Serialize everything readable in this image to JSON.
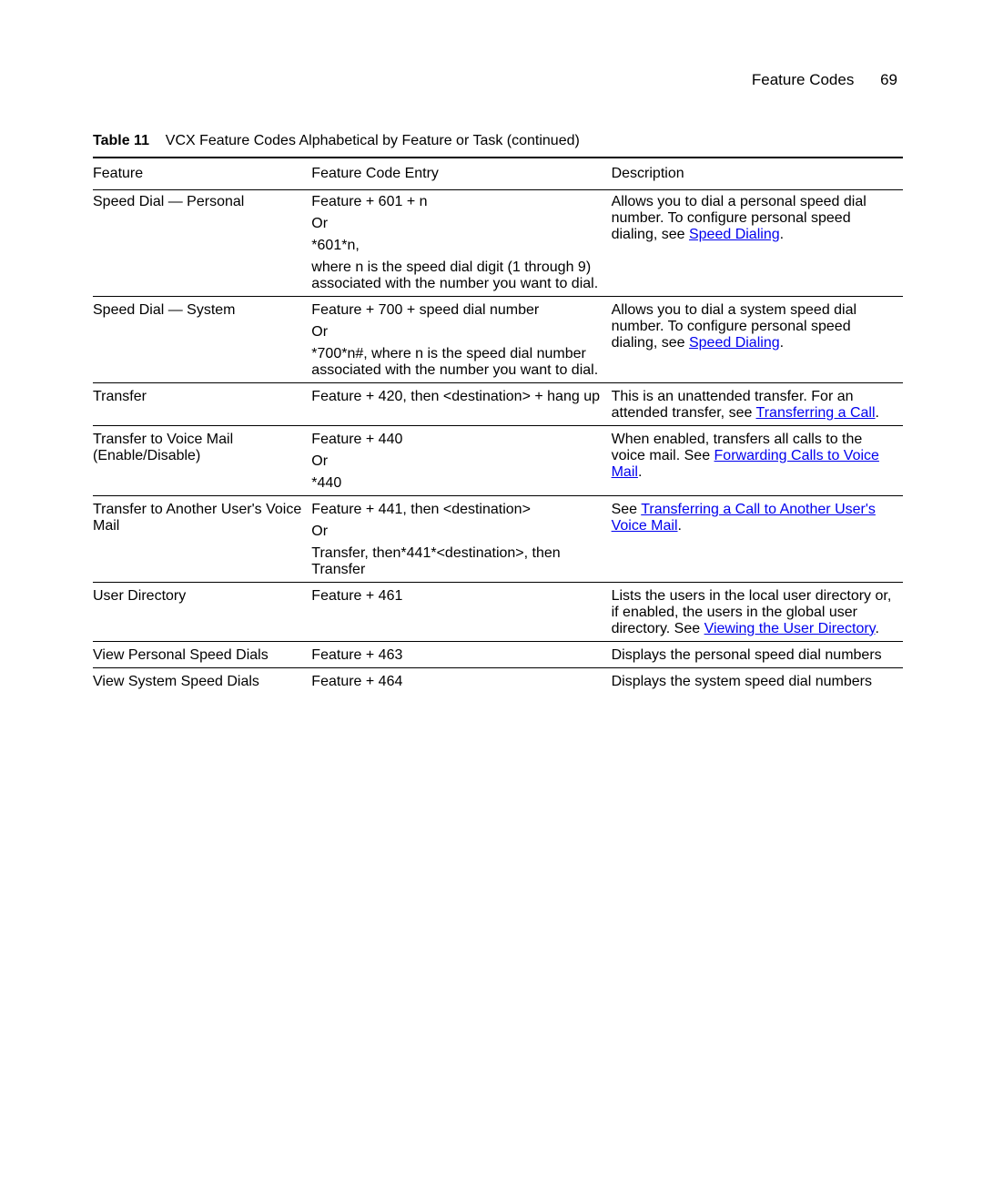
{
  "header": {
    "section": "Feature Codes",
    "pageNumber": "69"
  },
  "caption": {
    "prefix": "Table 11",
    "text": "VCX Feature Codes Alphabetical by Feature or Task  (continued)"
  },
  "columns": {
    "feature": "Feature",
    "entry": "Feature Code Entry",
    "description": "Description"
  },
  "rows": [
    {
      "feature": "Speed Dial — Personal",
      "entryLines": [
        "Feature + 601 + n",
        "Or",
        "*601*n,",
        "where n is the speed dial digit (1 through 9) associated with the number you want to dial."
      ],
      "desc": {
        "pre": "Allows you to dial a personal speed dial number. To configure personal speed dialing, see ",
        "link": "Speed Dialing",
        "post": "."
      }
    },
    {
      "feature": "Speed Dial — System",
      "entryLines": [
        "Feature + 700 + speed dial number",
        "Or",
        "*700*n#, where n is the speed dial number associated with the number you want to dial."
      ],
      "desc": {
        "pre": "Allows you to dial a system speed dial number. To configure personal speed dialing, see ",
        "link": "Speed Dialing",
        "post": "."
      }
    },
    {
      "feature": "Transfer",
      "entryLines": [
        "Feature + 420, then <destination> + hang up"
      ],
      "desc": {
        "pre": "This is an unattended transfer. For an attended transfer, see ",
        "link": "Transferring a Call",
        "post": "."
      }
    },
    {
      "feature": "Transfer to Voice Mail (Enable/Disable)",
      "entryLines": [
        "Feature + 440",
        "Or",
        "*440"
      ],
      "desc": {
        "pre": "When enabled, transfers all calls to the voice mail. See ",
        "link": "Forwarding Calls to Voice Mail",
        "post": "."
      }
    },
    {
      "feature": "Transfer to Another User's Voice Mail",
      "entryLines": [
        "Feature + 441, then <destination>",
        "Or",
        "Transfer, then*441*<destination>, then Transfer"
      ],
      "desc": {
        "pre": "See ",
        "link": "Transferring a Call to Another User's Voice Mail",
        "post": "."
      }
    },
    {
      "feature": "User Directory",
      "entryLines": [
        "Feature + 461"
      ],
      "desc": {
        "pre": "Lists the users in the local user directory or, if enabled, the users in the global user directory. See ",
        "link": "Viewing the User Directory",
        "post": "."
      }
    },
    {
      "feature": "View Personal Speed Dials",
      "entryLines": [
        "Feature + 463"
      ],
      "desc": {
        "pre": "Displays the personal speed dial numbers",
        "link": "",
        "post": ""
      }
    },
    {
      "feature": "View System Speed Dials",
      "entryLines": [
        "Feature + 464"
      ],
      "desc": {
        "pre": "Displays the system speed dial numbers",
        "link": "",
        "post": ""
      }
    }
  ]
}
